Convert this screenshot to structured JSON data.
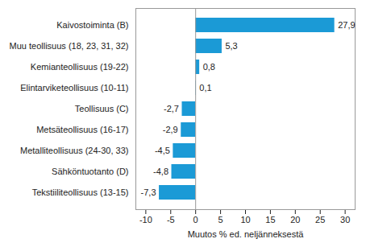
{
  "chart_data": {
    "type": "bar",
    "orientation": "horizontal",
    "categories": [
      "Kaivostoiminta (B)",
      "Muu teollisuus (18, 23, 31, 32)",
      "Kemianteollisuus (19-22)",
      "Elintarviketeollisuus (10-11)",
      "Teollisuus (C)",
      "Metsäteollisuus (16-17)",
      "Metalliteollisuus (24-30, 33)",
      "Sähköntuotanto (D)",
      "Tekstiiliteollisuus (13-15)"
    ],
    "values": [
      27.9,
      5.3,
      0.8,
      0.1,
      -2.7,
      -2.9,
      -4.5,
      -4.8,
      -7.3
    ],
    "value_labels": [
      "27,9",
      "5,3",
      "0,8",
      "0,1",
      "-2,7",
      "-2,9",
      "-4,5",
      "-4,8",
      "-7,3"
    ],
    "data_labels": true,
    "color": "#1b9ad6",
    "x_label": "Muutos % ed. neljänneksestä",
    "xlim": [
      -12,
      32
    ],
    "xticks": [
      -10,
      -5,
      0,
      5,
      10,
      15,
      20,
      25,
      30
    ],
    "grid": false
  }
}
